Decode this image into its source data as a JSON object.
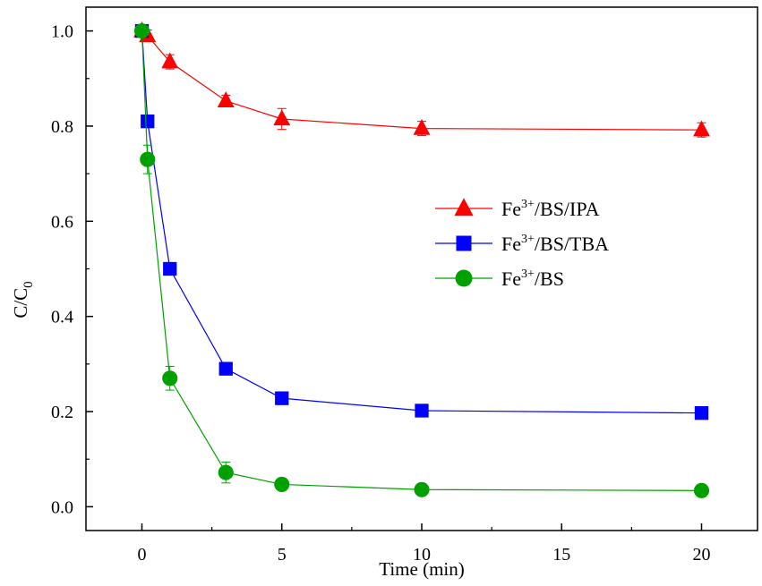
{
  "chart_data": {
    "type": "line",
    "title": "",
    "xlabel": "Time (min)",
    "ylabel_main": "C/C",
    "ylabel_sub": "0",
    "xlim": [
      -2,
      22
    ],
    "ylim": [
      -0.05,
      1.05
    ],
    "xticks": [
      0,
      5,
      10,
      15,
      20
    ],
    "yticks": [
      0.0,
      0.2,
      0.4,
      0.6,
      0.8,
      1.0
    ],
    "xtick_labels": [
      "0",
      "5",
      "10",
      "15",
      "20"
    ],
    "ytick_labels": [
      "0.0",
      "0.2",
      "0.4",
      "0.6",
      "0.8",
      "1.0"
    ],
    "grid": false,
    "legend_position": "center-right",
    "series": [
      {
        "name_base": "Fe",
        "name_sup": "3+",
        "name_rest": "/BS/IPA",
        "color": "#ff0000",
        "marker": "triangle",
        "x": [
          0,
          0.2,
          1,
          3,
          5,
          10,
          20
        ],
        "y": [
          1.0,
          0.99,
          0.935,
          0.853,
          0.815,
          0.795,
          0.792
        ],
        "err": [
          0.01,
          0.012,
          0.015,
          0.012,
          0.022,
          0.015,
          0.015
        ]
      },
      {
        "name_base": "Fe",
        "name_sup": "3+",
        "name_rest": "/BS/TBA",
        "color": "#0000ff",
        "marker": "square",
        "x": [
          0,
          0.2,
          1,
          3,
          5,
          10,
          20
        ],
        "y": [
          1.0,
          0.81,
          0.5,
          0.29,
          0.228,
          0.202,
          0.197
        ],
        "err": [
          0.01,
          0.012,
          0.01,
          0.008,
          0.008,
          0.006,
          0.006
        ]
      },
      {
        "name_base": "Fe",
        "name_sup": "3+",
        "name_rest": "/BS",
        "color": "#00a000",
        "marker": "circle",
        "x": [
          0,
          0.2,
          1,
          3,
          5,
          10,
          20
        ],
        "y": [
          1.0,
          0.73,
          0.27,
          0.072,
          0.047,
          0.036,
          0.034
        ],
        "err": [
          0.01,
          0.03,
          0.025,
          0.022,
          0.006,
          0.005,
          0.005
        ]
      }
    ]
  }
}
